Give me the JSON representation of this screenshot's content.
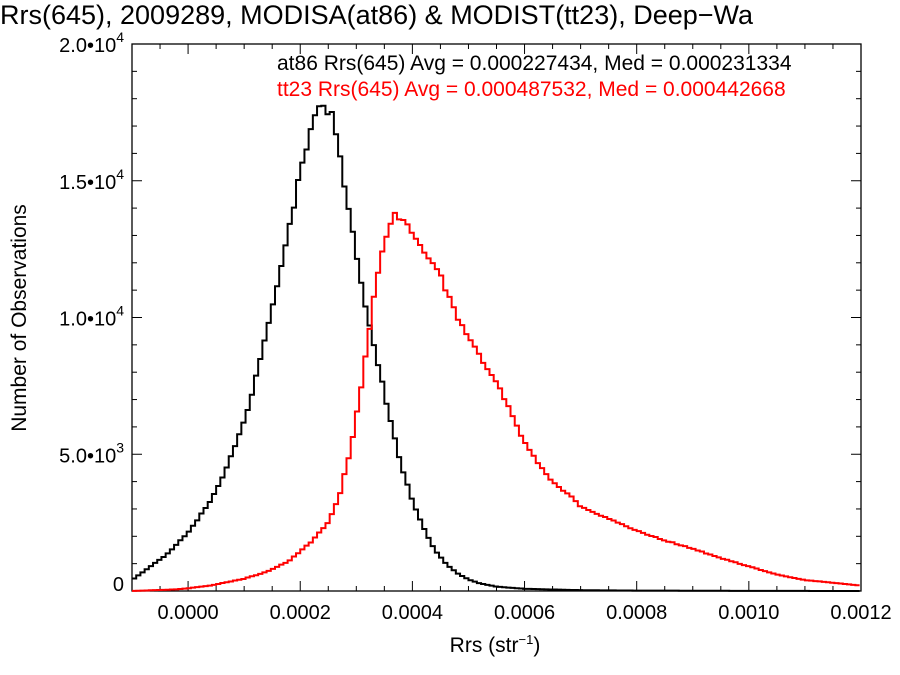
{
  "chart_data": {
    "type": "line",
    "title": "Rrs(645), 2009289, MODISA(at86) & MODIST(tt23), Deep−Wa",
    "xlabel": "Rrs (str",
    "xlabel_superscript": "−1",
    "xlabel_suffix": ")",
    "ylabel": "Number of Observations",
    "xlim": [
      -0.0001,
      0.0012
    ],
    "ylim": [
      0,
      20000
    ],
    "x_ticks": [
      0.0,
      0.0002,
      0.0004,
      0.0006,
      0.0008,
      0.001,
      0.0012
    ],
    "x_tick_labels": [
      "0.0000",
      "0.0002",
      "0.0004",
      "0.0006",
      "0.0008",
      "0.0010",
      "0.0012"
    ],
    "y_ticks": [
      {
        "value": 0,
        "mantissa": "0",
        "exponent": ""
      },
      {
        "value": 5000,
        "mantissa": "5.0•10",
        "exponent": "3"
      },
      {
        "value": 10000,
        "mantissa": "1.0•10",
        "exponent": "4"
      },
      {
        "value": 15000,
        "mantissa": "1.5•10",
        "exponent": "4"
      },
      {
        "value": 20000,
        "mantissa": "2.0•10",
        "exponent": "4"
      }
    ],
    "grid": false,
    "series": [
      {
        "name": "at86",
        "color": "#000000",
        "annotation": "at86 Rrs(645) Avg = 0.000227434, Med = 0.000231334",
        "points": [
          [
            -0.0001,
            400
          ],
          [
            -8e-05,
            700
          ],
          [
            -6e-05,
            1000
          ],
          [
            -4e-05,
            1300
          ],
          [
            -2e-05,
            1700
          ],
          [
            0.0,
            2150
          ],
          [
            2e-05,
            2700
          ],
          [
            4e-05,
            3300
          ],
          [
            6e-05,
            4100
          ],
          [
            8e-05,
            5100
          ],
          [
            0.0001,
            6200
          ],
          [
            0.00012,
            7700
          ],
          [
            0.00014,
            9400
          ],
          [
            0.00016,
            11200
          ],
          [
            0.00018,
            13200
          ],
          [
            0.0002,
            15300
          ],
          [
            0.00021,
            16100
          ],
          [
            0.00022,
            16900
          ],
          [
            0.00023,
            17600
          ],
          [
            0.00024,
            17700
          ],
          [
            0.00025,
            17500
          ],
          [
            0.00026,
            17300
          ],
          [
            0.00027,
            16000
          ],
          [
            0.00028,
            14700
          ],
          [
            0.0003,
            12400
          ],
          [
            0.00032,
            10000
          ],
          [
            0.00034,
            8200
          ],
          [
            0.00036,
            6300
          ],
          [
            0.00038,
            4600
          ],
          [
            0.0004,
            3300
          ],
          [
            0.00042,
            2300
          ],
          [
            0.00044,
            1500
          ],
          [
            0.00046,
            1000
          ],
          [
            0.00048,
            650
          ],
          [
            0.0005,
            420
          ],
          [
            0.00052,
            280
          ],
          [
            0.00055,
            160
          ],
          [
            0.0006,
            80
          ],
          [
            0.0007,
            30
          ],
          [
            0.0008,
            15
          ],
          [
            0.001,
            5
          ],
          [
            0.0012,
            0
          ]
        ]
      },
      {
        "name": "tt23",
        "color": "#ff0000",
        "annotation": "tt23 Rrs(645) Avg = 0.000487532, Med = 0.000442668",
        "points": [
          [
            -0.0001,
            0
          ],
          [
            -6e-05,
            30
          ],
          [
            -2e-05,
            60
          ],
          [
            0.0,
            100
          ],
          [
            4e-05,
            200
          ],
          [
            0.0001,
            450
          ],
          [
            0.00014,
            700
          ],
          [
            0.00018,
            1100
          ],
          [
            0.00022,
            1800
          ],
          [
            0.00025,
            2500
          ],
          [
            0.00027,
            3500
          ],
          [
            0.00029,
            5200
          ],
          [
            0.00031,
            7600
          ],
          [
            0.00033,
            10600
          ],
          [
            0.00035,
            12800
          ],
          [
            0.00036,
            13500
          ],
          [
            0.00037,
            13800
          ],
          [
            0.00038,
            13600
          ],
          [
            0.0004,
            13100
          ],
          [
            0.00042,
            12500
          ],
          [
            0.00045,
            11500
          ],
          [
            0.00048,
            10000
          ],
          [
            0.0005,
            9300
          ],
          [
            0.00052,
            8600
          ],
          [
            0.00055,
            7600
          ],
          [
            0.00058,
            6400
          ],
          [
            0.0006,
            5400
          ],
          [
            0.00062,
            4800
          ],
          [
            0.00065,
            4000
          ],
          [
            0.00068,
            3500
          ],
          [
            0.0007,
            3100
          ],
          [
            0.00075,
            2650
          ],
          [
            0.0008,
            2200
          ],
          [
            0.00085,
            1850
          ],
          [
            0.0009,
            1550
          ],
          [
            0.00095,
            1200
          ],
          [
            0.001,
            900
          ],
          [
            0.00105,
            600
          ],
          [
            0.0011,
            400
          ],
          [
            0.00115,
            300
          ],
          [
            0.0012,
            200
          ]
        ]
      }
    ]
  }
}
